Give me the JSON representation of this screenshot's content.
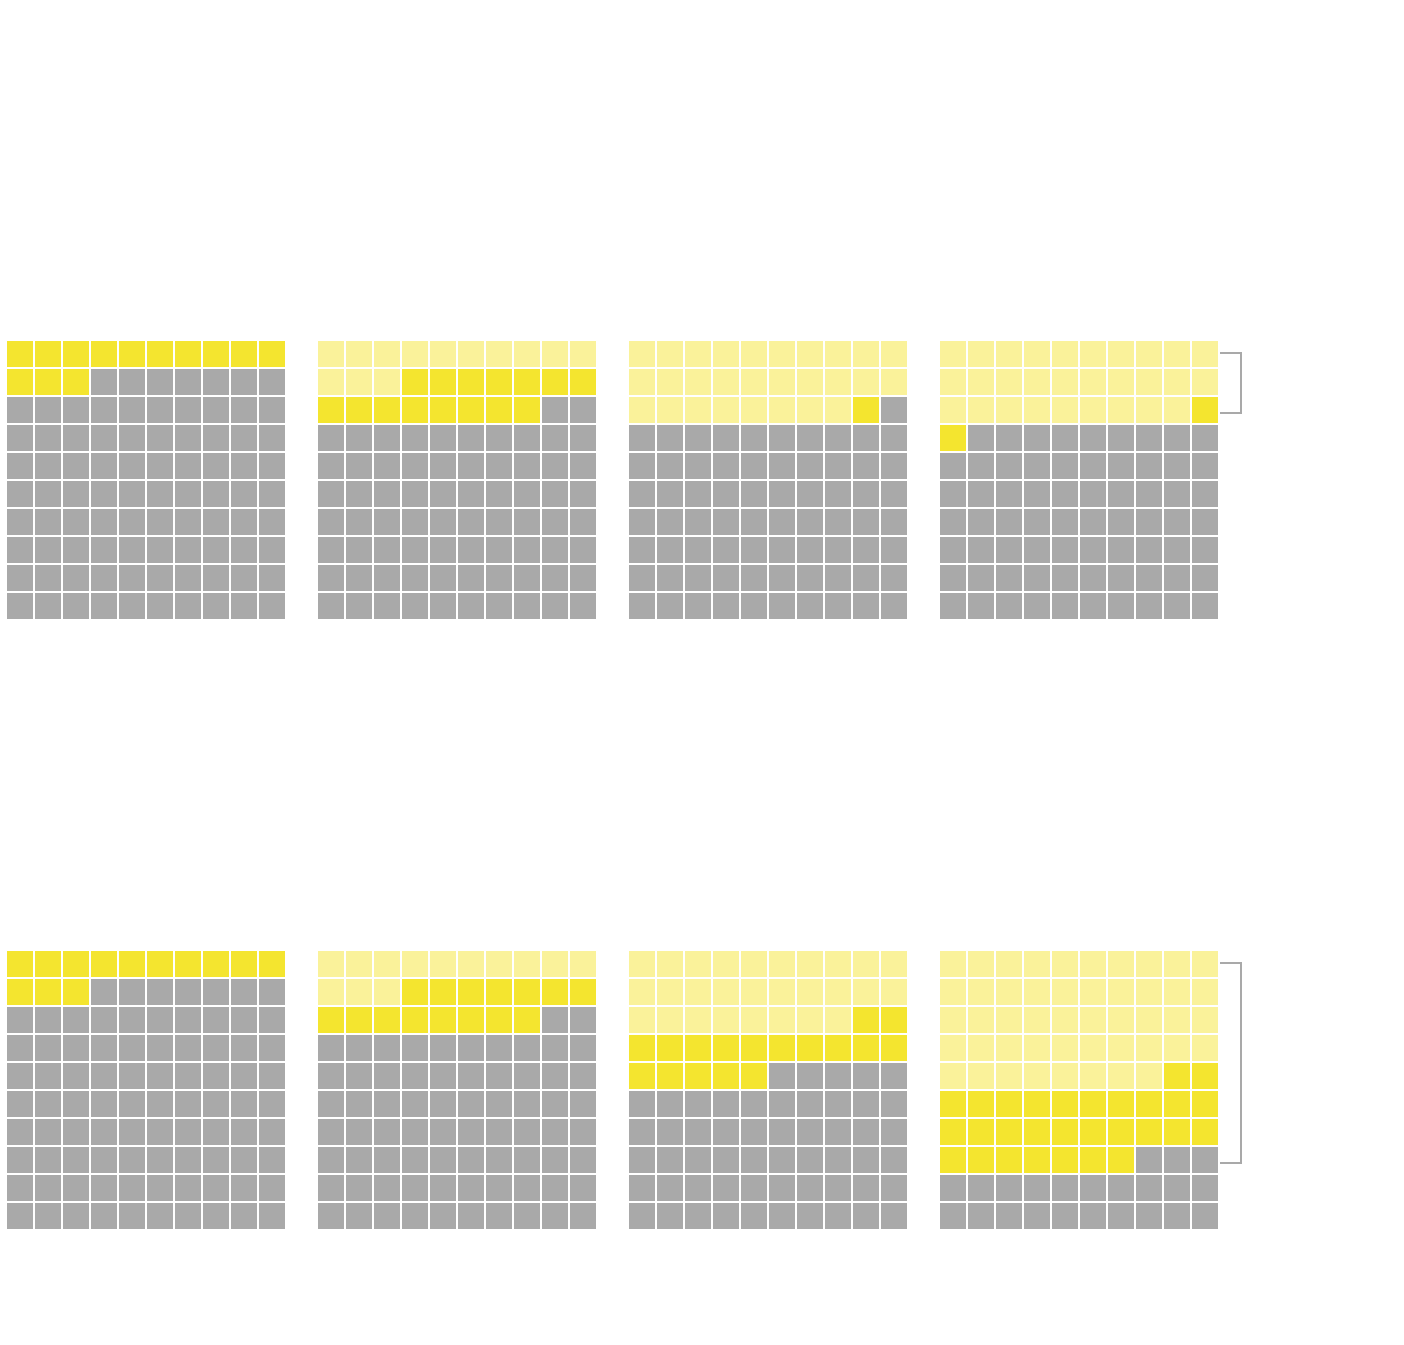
{
  "chart_data": {
    "type": "waffle",
    "grid": {
      "rows": 10,
      "cols": 10,
      "units_per_grid": 100
    },
    "colors": {
      "new": "#f4e52f",
      "previous": "#faf29a",
      "empty": "#a9a9a9",
      "bracket": "#a9a9a9",
      "background": "#ffffff"
    },
    "rows": [
      {
        "grids": [
          {
            "previous": 0,
            "new": 13
          },
          {
            "previous": 13,
            "new": 15
          },
          {
            "previous": 28,
            "new": 1
          },
          {
            "previous": 29,
            "new": 2
          }
        ],
        "bracket": {
          "grid": 3,
          "from_row": 1,
          "to_row": 3
        }
      },
      {
        "grids": [
          {
            "previous": 0,
            "new": 13
          },
          {
            "previous": 13,
            "new": 15
          },
          {
            "previous": 28,
            "new": 17
          },
          {
            "previous": 48,
            "new": 29
          }
        ],
        "bracket": {
          "grid": 3,
          "from_row": 1,
          "to_row": 8
        }
      }
    ]
  }
}
